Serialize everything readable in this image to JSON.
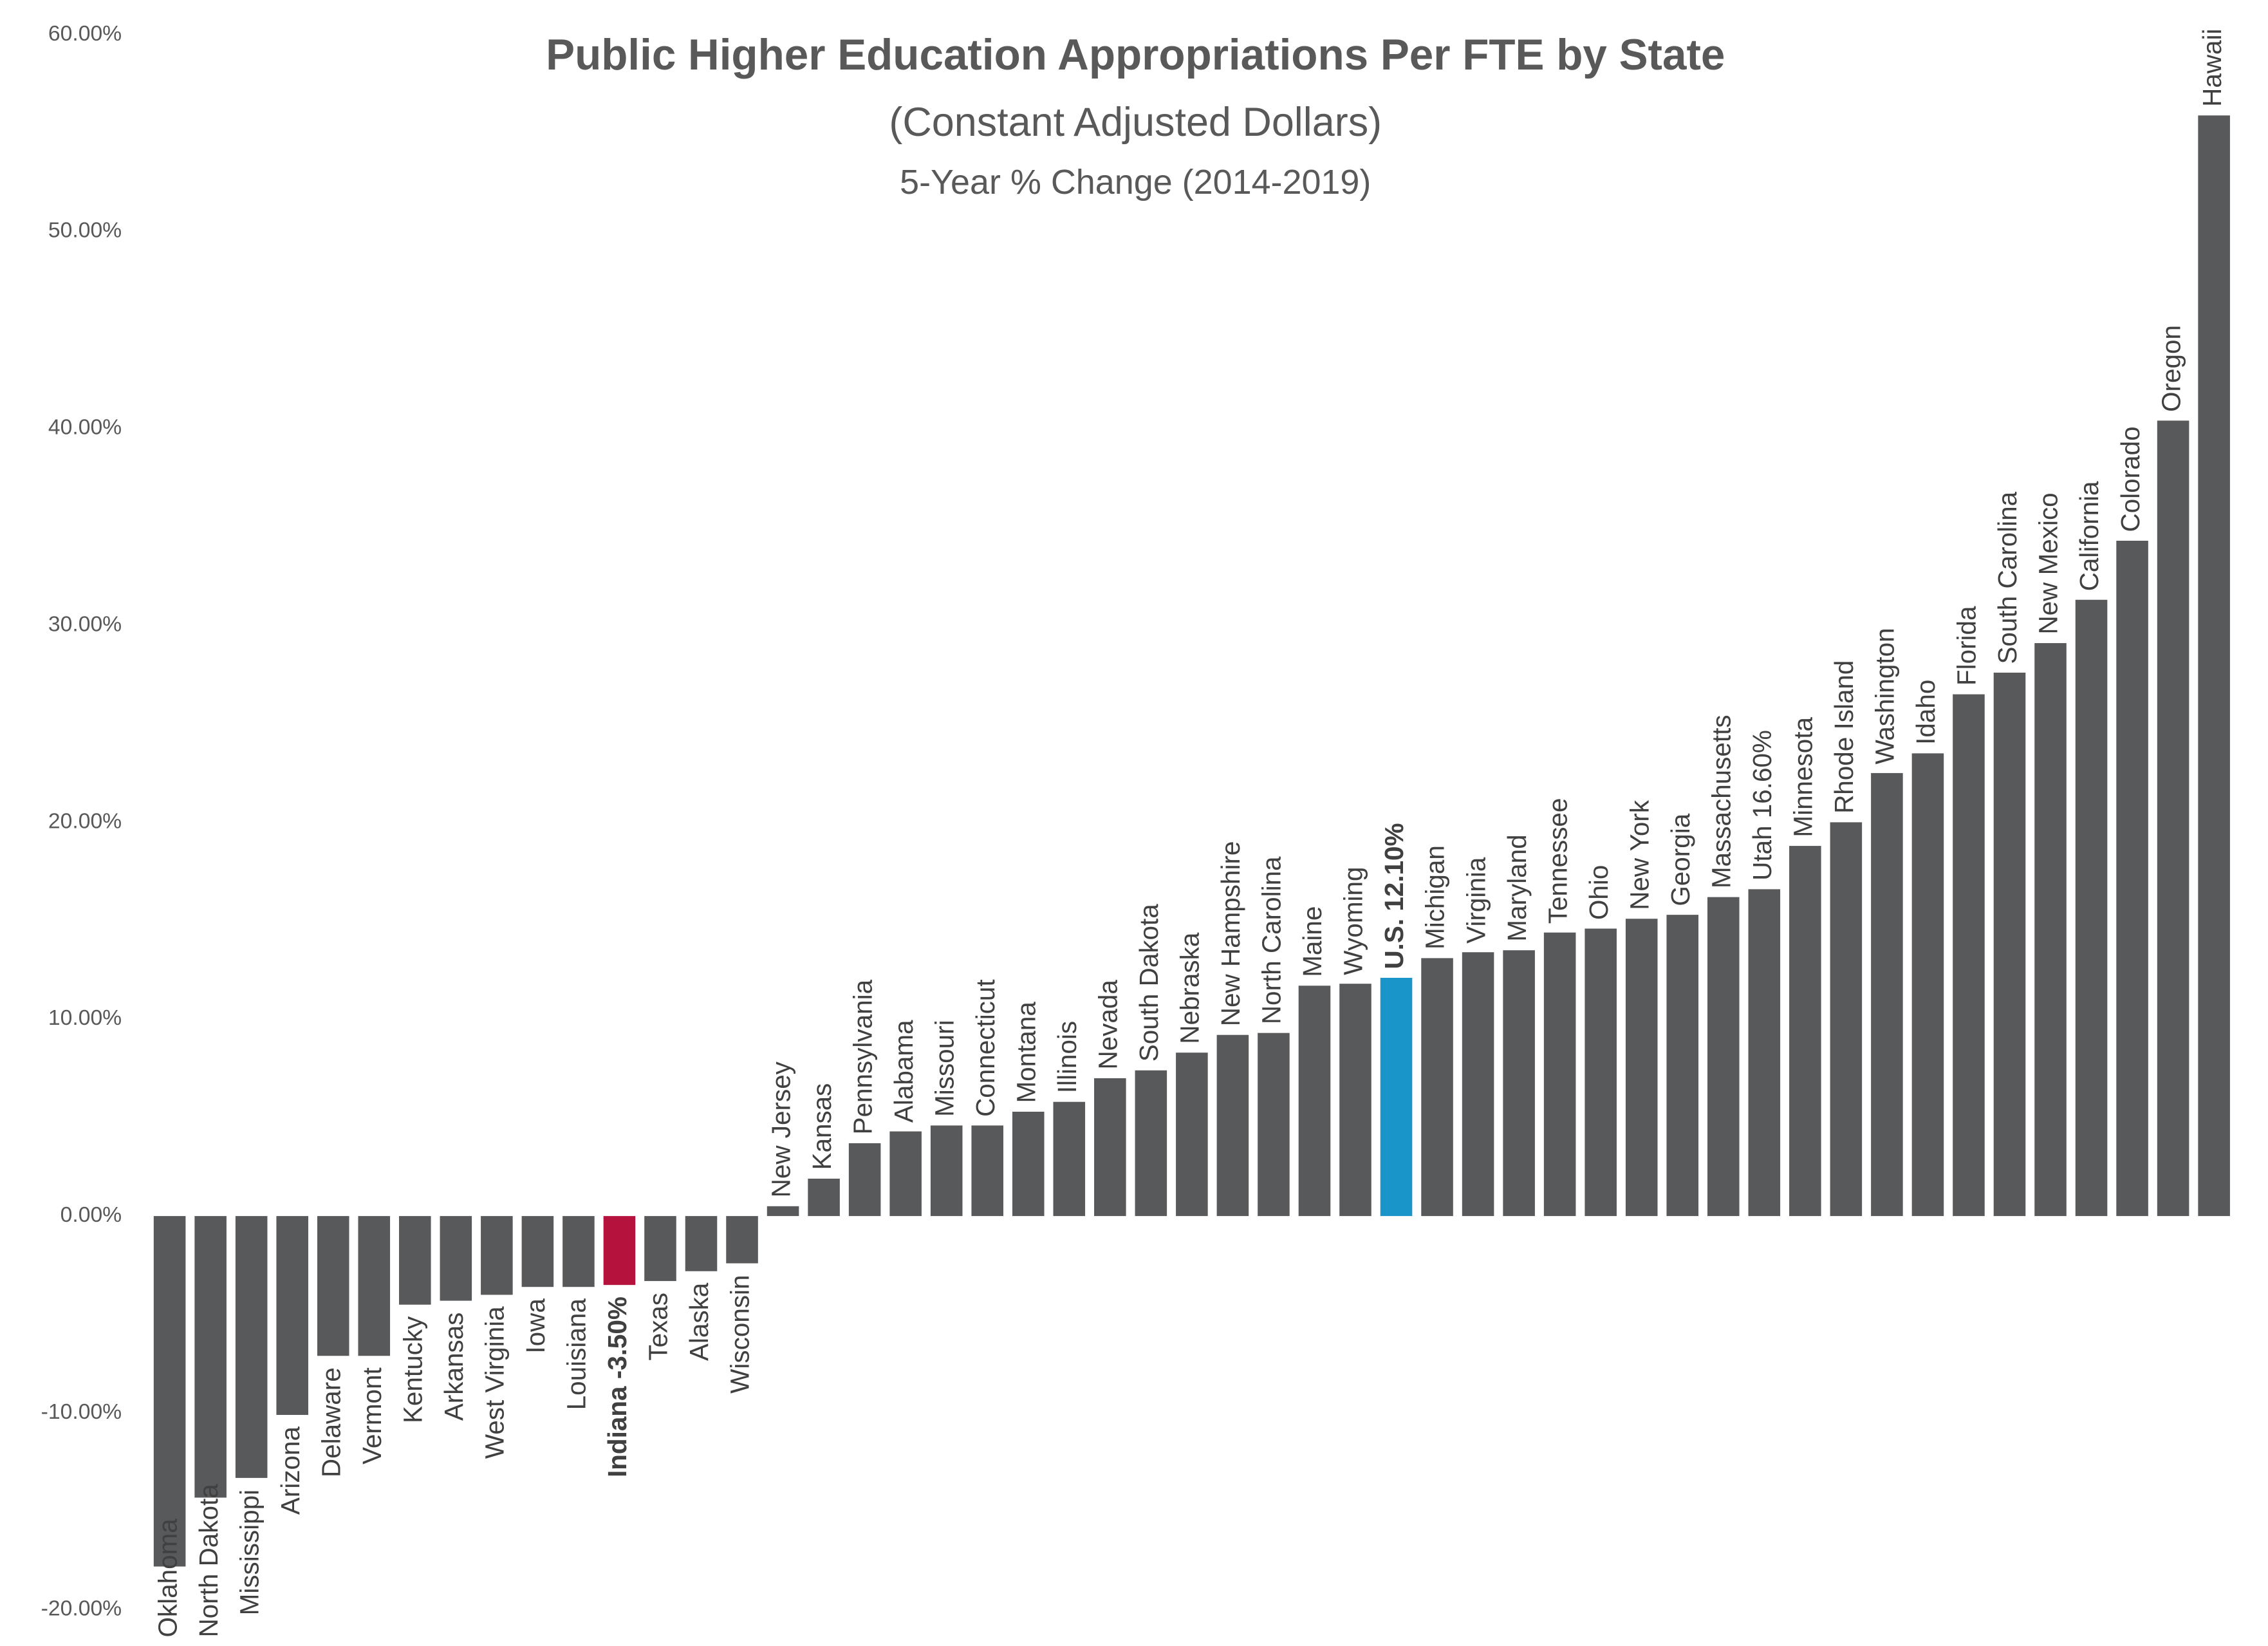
{
  "chart_data": {
    "type": "bar",
    "title": "Public Higher Education Appropriations Per FTE by State",
    "subtitle": "(Constant Adjusted Dollars)",
    "subtitle2": "5-Year % Change (2014-2019)",
    "categories": [
      "Oklahoma",
      "North Dakota",
      "Mississippi",
      "Arizona",
      "Delaware",
      "Vermont",
      "Kentucky",
      "Arkansas",
      "West Virginia",
      "Iowa",
      "Louisiana",
      "Indiana -3.50%",
      "Texas",
      "Alaska",
      "Wisconsin",
      "New Jersey",
      "Kansas",
      "Pennsylvania",
      "Alabama",
      "Missouri",
      "Connecticut",
      "Montana",
      "Illinois",
      "Nevada",
      "South Dakota",
      "Nebraska",
      "New Hampshire",
      "North Carolina",
      "Maine",
      "Wyoming",
      "U.S. 12.10%",
      "Michigan",
      "Virginia",
      "Maryland",
      "Tennessee",
      "Ohio",
      "New York",
      "Georgia",
      "Massachusetts",
      "Utah 16.60%",
      "Minnesota",
      "Rhode Island",
      "Washington",
      "Idaho",
      "Florida",
      "South Carolina",
      "New Mexico",
      "California",
      "Colorado",
      "Oregon",
      "Hawaii"
    ],
    "values": [
      -17.8,
      -14.3,
      -13.3,
      -10.1,
      -7.1,
      -7.1,
      -4.5,
      -4.3,
      -4.0,
      -3.6,
      -3.6,
      -3.5,
      -3.3,
      -2.8,
      -2.4,
      0.5,
      1.9,
      3.7,
      4.3,
      4.6,
      4.6,
      5.3,
      5.8,
      7.0,
      7.4,
      8.3,
      9.2,
      9.3,
      11.7,
      11.8,
      12.1,
      13.1,
      13.4,
      13.5,
      14.4,
      14.6,
      15.1,
      15.3,
      16.2,
      16.6,
      18.8,
      20.0,
      22.5,
      23.5,
      26.5,
      27.6,
      29.1,
      31.3,
      34.3,
      40.4,
      55.9
    ],
    "color": "#58595b",
    "colors": [
      "#58595b",
      "#58595b",
      "#58595b",
      "#58595b",
      "#58595b",
      "#58595b",
      "#58595b",
      "#58595b",
      "#58595b",
      "#58595b",
      "#58595b",
      "#b5123e",
      "#58595b",
      "#58595b",
      "#58595b",
      "#58595b",
      "#58595b",
      "#58595b",
      "#58595b",
      "#58595b",
      "#58595b",
      "#58595b",
      "#58595b",
      "#58595b",
      "#58595b",
      "#58595b",
      "#58595b",
      "#58595b",
      "#58595b",
      "#58595b",
      "#1a95c9",
      "#58595b",
      "#58595b",
      "#58595b",
      "#58595b",
      "#58595b",
      "#58595b",
      "#58595b",
      "#58595b",
      "#58595b",
      "#58595b",
      "#58595b",
      "#58595b",
      "#58595b",
      "#58595b",
      "#58595b",
      "#58595b",
      "#58595b",
      "#58595b",
      "#58595b",
      "#58595b"
    ],
    "ylim": [
      -20,
      60
    ],
    "yticks": [
      {
        "value": -20,
        "label": "-20.00%"
      },
      {
        "value": -10,
        "label": "-10.00%"
      },
      {
        "value": 0,
        "label": "0.00%"
      },
      {
        "value": 10,
        "label": "10.00%"
      },
      {
        "value": 20,
        "label": "20.00%"
      },
      {
        "value": 30,
        "label": "30.00%"
      },
      {
        "value": 40,
        "label": "40.00%"
      },
      {
        "value": 50,
        "label": "50.00%"
      },
      {
        "value": 60,
        "label": "60.00%"
      }
    ],
    "grid": false
  }
}
